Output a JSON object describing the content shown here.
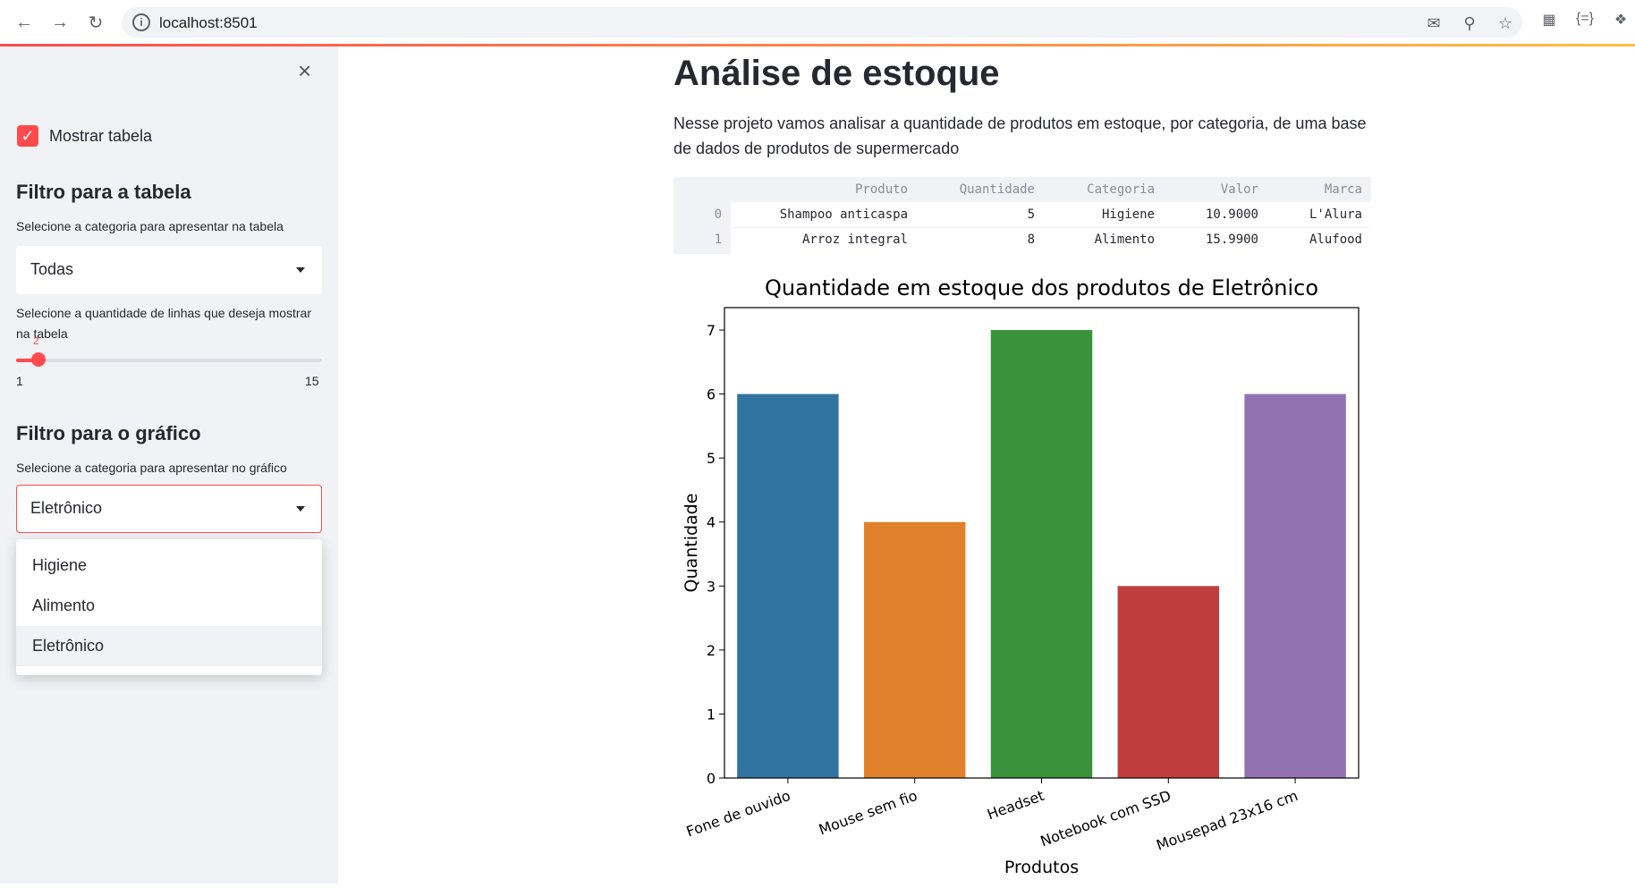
{
  "browser": {
    "url": "localhost:8501",
    "back_icon": "back-arrow-icon",
    "forward_icon": "forward-arrow-icon",
    "reload_icon": "reload-icon"
  },
  "sidebar": {
    "close_symbol": "×",
    "show_table_label": "Mostrar tabela",
    "show_table_checked": true,
    "table_filter_heading": "Filtro para a tabela",
    "table_category_label": "Selecione a categoria para apresentar na tabela",
    "table_category_value": "Todas",
    "rows_label": "Selecione a quantidade de linhas que deseja mostrar na tabela",
    "rows_slider": {
      "value": "2",
      "min": "1",
      "max": "15"
    },
    "chart_filter_heading": "Filtro para o gráfico",
    "chart_category_label": "Selecione a categoria para apresentar no gráfico",
    "chart_category_value": "Eletrônico",
    "chart_category_options": [
      "Higiene",
      "Alimento",
      "Eletrônico"
    ]
  },
  "main": {
    "title": "Análise de estoque",
    "description": "Nesse projeto vamos analisar a quantidade de produtos em estoque, por categoria, de uma base de dados de produtos de supermercado",
    "table": {
      "columns": [
        "Produto",
        "Quantidade",
        "Categoria",
        "Valor",
        "Marca"
      ],
      "rows": [
        {
          "index": "0",
          "cells": [
            "Shampoo anticaspa",
            "5",
            "Higiene",
            "10.9000",
            "L'Alura"
          ]
        },
        {
          "index": "1",
          "cells": [
            "Arroz integral",
            "8",
            "Alimento",
            "15.9900",
            "Alufood"
          ]
        }
      ]
    }
  },
  "chart_data": {
    "type": "bar",
    "title": "Quantidade em estoque dos produtos de Eletrônico",
    "xlabel": "Produtos",
    "ylabel": "Quantidade",
    "categories": [
      "Fone de ouvido",
      "Mouse sem fio",
      "Headset",
      "Notebook com SSD",
      "Mousepad 23x16 cm"
    ],
    "values": [
      6,
      4,
      7,
      3,
      6
    ],
    "colors": [
      "#3274a1",
      "#e1812c",
      "#3a923a",
      "#c03d3e",
      "#9372b2"
    ],
    "ylim": [
      0,
      7.35
    ],
    "yticks": [
      0,
      1,
      2,
      3,
      4,
      5,
      6,
      7
    ],
    "grid": false,
    "legend": "none"
  }
}
